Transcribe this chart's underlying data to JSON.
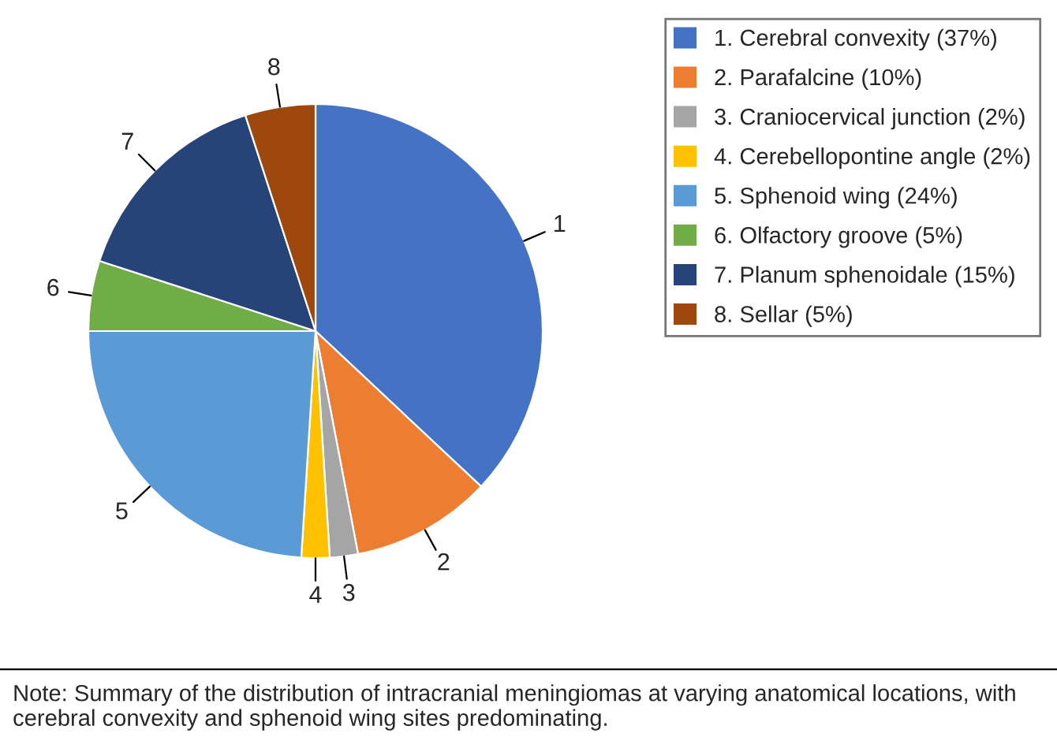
{
  "chart_data": {
    "type": "pie",
    "categories": [
      "1. Cerebral convexity (37%)",
      "2. Parafalcine (10%)",
      "3. Craniocervical junction (2%)",
      "4. Cerebellopontine angle (2%)",
      "5. Sphenoid wing (24%)",
      "6. Olfactory groove (5%)",
      "7. Planum sphenoidale (15%)",
      "8. Sellar (5%)"
    ],
    "values": [
      37,
      10,
      2,
      2,
      24,
      5,
      15,
      5
    ],
    "colors": [
      "#4472c4",
      "#ed7d31",
      "#a5a5a5",
      "#ffc000",
      "#5b9bd5",
      "#70ad47",
      "#264478",
      "#9e480e"
    ],
    "legend": "top right",
    "annotations": [
      {
        "text": "1",
        "x": "1. Cerebral convexity (37%)"
      },
      {
        "text": "2",
        "x": "2. Parafalcine (10%)"
      },
      {
        "text": "3",
        "x": "3. Craniocervical junction (2%)"
      },
      {
        "text": "4",
        "x": "4. Cerebellopontine angle (2%)"
      },
      {
        "text": "5",
        "x": "5. Sphenoid wing (24%)"
      },
      {
        "text": "6",
        "x": "6. Olfactory groove (5%)"
      },
      {
        "text": "7",
        "x": "7. Planum sphenoidale (15%)"
      },
      {
        "text": "8",
        "x": "8. Sellar (5%)"
      },
      "Note: Summary of the distribution of intracranial meningiomas at varying anatomical locations, with cerebral convexity and sphenoid wing sites predominating."
    ]
  }
}
